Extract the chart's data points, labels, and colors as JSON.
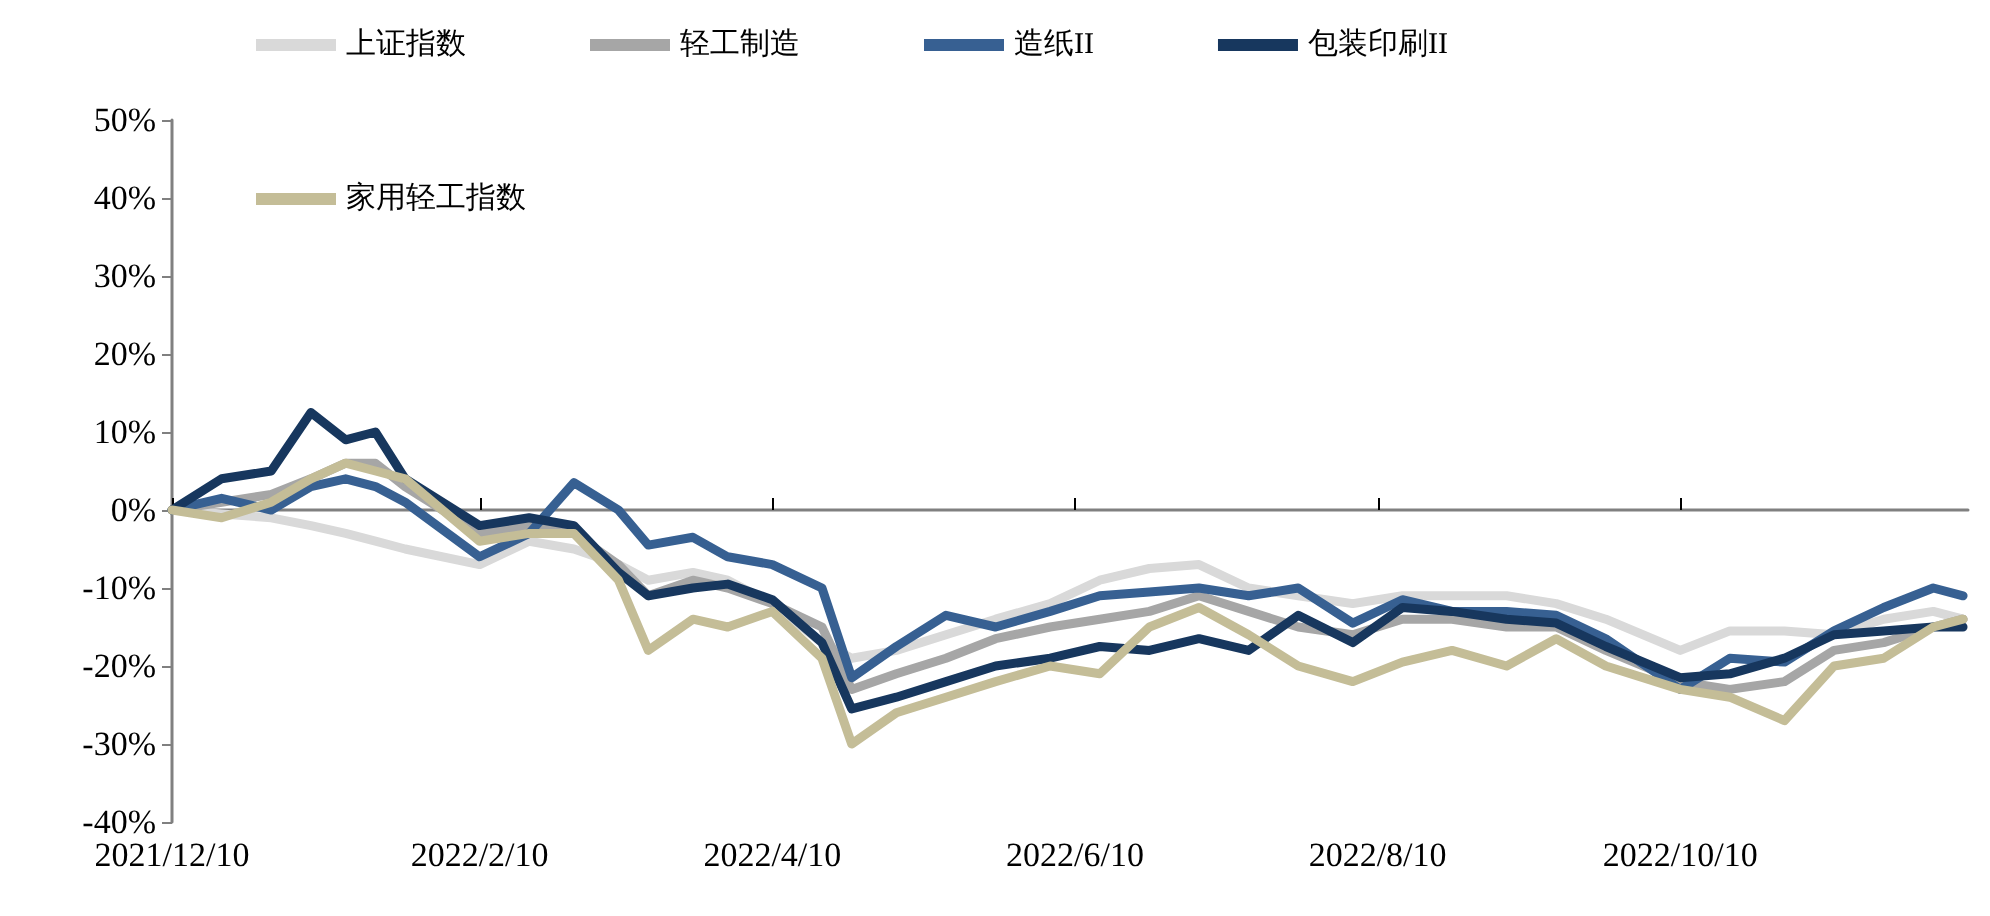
{
  "chart_data": {
    "type": "line",
    "x": [
      "2021-12-10",
      "2021-12-20",
      "2021-12-30",
      "2022-01-07",
      "2022-01-14",
      "2022-01-20",
      "2022-01-26",
      "2022-02-10",
      "2022-02-20",
      "2022-03-01",
      "2022-03-10",
      "2022-03-16",
      "2022-03-25",
      "2022-04-01",
      "2022-04-10",
      "2022-04-20",
      "2022-04-26",
      "2022-05-05",
      "2022-05-15",
      "2022-05-25",
      "2022-06-05",
      "2022-06-15",
      "2022-06-25",
      "2022-07-05",
      "2022-07-15",
      "2022-07-25",
      "2022-08-05",
      "2022-08-15",
      "2022-08-25",
      "2022-09-05",
      "2022-09-15",
      "2022-09-25",
      "2022-10-10",
      "2022-10-20",
      "2022-10-31",
      "2022-11-10",
      "2022-11-20",
      "2022-11-30",
      "2022-12-06"
    ],
    "series": [
      {
        "name": "上证指数",
        "color": "#d9d9d9",
        "values": [
          0,
          -0.5,
          -1,
          -2,
          -3,
          -4,
          -5,
          -7,
          -4,
          -5,
          -7,
          -9,
          -8,
          -9,
          -12,
          -17,
          -19,
          -18,
          -16,
          -14,
          -12,
          -9,
          -7.5,
          -7,
          -10,
          -11,
          -12,
          -11,
          -11,
          -11,
          -12,
          -14,
          -18,
          -15.5,
          -15.5,
          -16,
          -14,
          -13,
          -14
        ]
      },
      {
        "name": "轻工制造",
        "color": "#a6a6a6",
        "values": [
          0,
          1,
          2,
          4,
          6,
          6,
          3,
          -3,
          -2,
          -3,
          -7,
          -11,
          -9,
          -10,
          -12,
          -15,
          -23,
          -21,
          -19,
          -16.5,
          -15,
          -14,
          -13,
          -11,
          -13,
          -15,
          -16,
          -14,
          -14,
          -15,
          -15,
          -18,
          -22,
          -23,
          -22,
          -18,
          -17,
          -15,
          -14
        ]
      },
      {
        "name": "造纸II",
        "color": "#376092",
        "values": [
          0,
          1.5,
          0,
          3,
          4,
          3,
          1,
          -6,
          -3,
          3.5,
          0,
          -4.5,
          -3.5,
          -6,
          -7,
          -10,
          -21.5,
          -17.5,
          -13.5,
          -15,
          -13,
          -11,
          -10.5,
          -10,
          -11,
          -10,
          -14.5,
          -11.5,
          -13,
          -13,
          -13.5,
          -16.5,
          -23,
          -19,
          -19.5,
          -15.5,
          -12.5,
          -10,
          -11
        ]
      },
      {
        "name": "包装印刷II",
        "color": "#17375e",
        "values": [
          0,
          4,
          5,
          12.5,
          9,
          10,
          4,
          -2,
          -1,
          -2,
          -8,
          -11,
          -10,
          -9.5,
          -11.5,
          -17,
          -25.5,
          -24,
          -22,
          -20,
          -19,
          -17.5,
          -18,
          -16.5,
          -18,
          -13.5,
          -17,
          -12.5,
          -13,
          -14,
          -14.5,
          -17.5,
          -21.5,
          -21,
          -19,
          -16,
          -15.5,
          -15,
          -15
        ]
      },
      {
        "name": "家用轻工指数",
        "color": "#c4bd97",
        "values": [
          0,
          -1,
          1,
          4,
          6,
          5,
          4,
          -4,
          -3,
          -3,
          -9,
          -18,
          -14,
          -15,
          -13,
          -19,
          -30,
          -26,
          -24,
          -22,
          -20,
          -21,
          -15,
          -12.5,
          -16,
          -20,
          -22,
          -19.5,
          -18,
          -20,
          -16.5,
          -20,
          -23,
          -24,
          -27,
          -20,
          -19,
          -15,
          -14
        ]
      }
    ],
    "xlim": [
      "2021-12-10",
      "2022-12-07"
    ],
    "xticks": [
      {
        "value": "2021-12-10",
        "label": "2021/12/10"
      },
      {
        "value": "2022-02-10",
        "label": "2022/2/10"
      },
      {
        "value": "2022-04-10",
        "label": "2022/4/10"
      },
      {
        "value": "2022-06-10",
        "label": "2022/6/10"
      },
      {
        "value": "2022-08-10",
        "label": "2022/8/10"
      },
      {
        "value": "2022-10-10",
        "label": "2022/10/10"
      }
    ],
    "ylim": [
      -40,
      50
    ],
    "yticks": [
      {
        "value": -40,
        "label": "-40%"
      },
      {
        "value": -30,
        "label": "-30%"
      },
      {
        "value": -20,
        "label": "-20%"
      },
      {
        "value": -10,
        "label": "-10%"
      },
      {
        "value": 0,
        "label": "0%"
      },
      {
        "value": 10,
        "label": "10%"
      },
      {
        "value": 20,
        "label": "20%"
      },
      {
        "value": 30,
        "label": "30%"
      },
      {
        "value": 40,
        "label": "40%"
      },
      {
        "value": 50,
        "label": "50%"
      }
    ],
    "legend": "top"
  }
}
